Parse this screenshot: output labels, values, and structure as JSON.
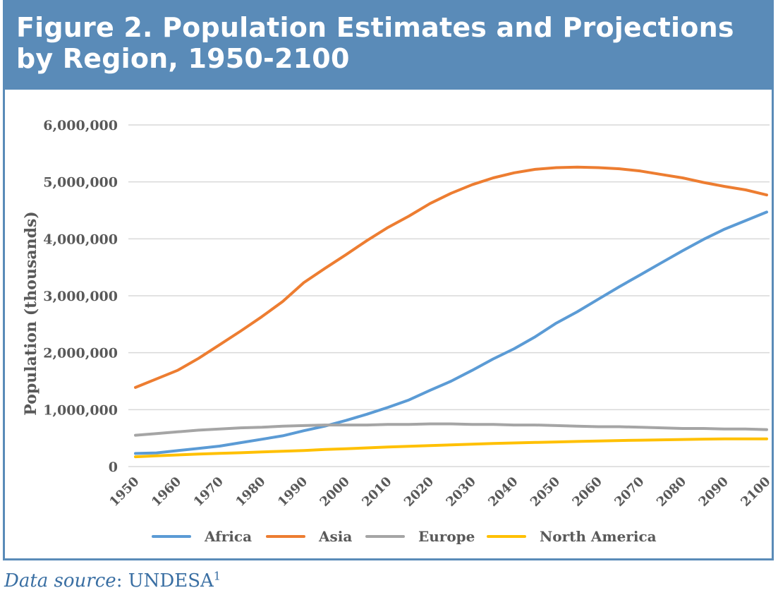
{
  "figure": {
    "title": "Figure 2. Population Estimates and Projections by Region, 1950-2100"
  },
  "source": {
    "label": "Data source",
    "separator": ":",
    "name": "UNDESA",
    "footnote": "1"
  },
  "colors": {
    "frame": "#5a8bb8",
    "grid": "#d9d9d9",
    "axis_text": "#595959",
    "source_text": "#3a6fa3"
  },
  "chart_data": {
    "type": "line",
    "title": "",
    "xlabel": "",
    "ylabel": "Population (thousands)",
    "x": [
      1950,
      1955,
      1960,
      1965,
      1970,
      1975,
      1980,
      1985,
      1990,
      1995,
      2000,
      2005,
      2010,
      2015,
      2020,
      2025,
      2030,
      2035,
      2040,
      2045,
      2050,
      2055,
      2060,
      2065,
      2070,
      2075,
      2080,
      2085,
      2090,
      2095,
      2100
    ],
    "x_tick_labels": [
      "1950",
      "1960",
      "1970",
      "1980",
      "1990",
      "2000",
      "2010",
      "2020",
      "2030",
      "2040",
      "2050",
      "2060",
      "2070",
      "2080",
      "2090",
      "2100"
    ],
    "ylim": [
      0,
      6000000
    ],
    "y_ticks": [
      0,
      1000000,
      2000000,
      3000000,
      4000000,
      5000000,
      6000000
    ],
    "y_tick_labels": [
      "0",
      "1,000,000",
      "2,000,000",
      "3,000,000",
      "4,000,000",
      "5,000,000",
      "6,000,000"
    ],
    "grid": true,
    "legend_position": "bottom",
    "series": [
      {
        "name": "Africa",
        "color": "#5b9bd5",
        "values": [
          230000,
          240000,
          280000,
          320000,
          360000,
          420000,
          480000,
          540000,
          630000,
          710000,
          810000,
          920000,
          1040000,
          1170000,
          1340000,
          1500000,
          1690000,
          1890000,
          2070000,
          2280000,
          2520000,
          2720000,
          2940000,
          3160000,
          3370000,
          3580000,
          3790000,
          3990000,
          4170000,
          4320000,
          4470000
        ]
      },
      {
        "name": "Asia",
        "color": "#ed7d31",
        "values": [
          1390000,
          1540000,
          1690000,
          1900000,
          2140000,
          2380000,
          2630000,
          2900000,
          3230000,
          3480000,
          3720000,
          3970000,
          4200000,
          4400000,
          4620000,
          4800000,
          4950000,
          5070000,
          5160000,
          5220000,
          5250000,
          5260000,
          5250000,
          5230000,
          5190000,
          5130000,
          5070000,
          4990000,
          4920000,
          4860000,
          4770000
        ]
      },
      {
        "name": "Europe",
        "color": "#a5a5a5",
        "values": [
          550000,
          580000,
          610000,
          640000,
          660000,
          680000,
          690000,
          710000,
          720000,
          730000,
          730000,
          730000,
          740000,
          740000,
          750000,
          750000,
          740000,
          740000,
          730000,
          730000,
          720000,
          710000,
          700000,
          700000,
          690000,
          680000,
          670000,
          670000,
          660000,
          660000,
          650000
        ]
      },
      {
        "name": "North America",
        "color": "#ffc000",
        "values": [
          172000,
          190000,
          205000,
          220000,
          232000,
          243000,
          256000,
          270000,
          283000,
          300000,
          313000,
          328000,
          344000,
          357000,
          369000,
          381000,
          394000,
          405000,
          415000,
          424000,
          433000,
          441000,
          449000,
          457000,
          464000,
          470000,
          476000,
          482000,
          487000,
          487000,
          487000
        ]
      }
    ]
  }
}
